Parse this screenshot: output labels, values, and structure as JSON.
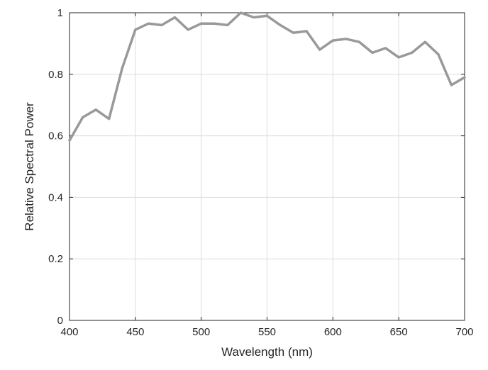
{
  "chart_data": {
    "type": "line",
    "title": "",
    "xlabel": "Wavelength (nm)",
    "ylabel": "Relative Spectral Power",
    "xlim": [
      400,
      700
    ],
    "ylim": [
      0,
      1
    ],
    "x_ticks": [
      "400",
      "450",
      "500",
      "550",
      "600",
      "650",
      "700"
    ],
    "y_ticks": [
      "0",
      "0.2",
      "0.4",
      "0.6",
      "0.8",
      "1"
    ],
    "grid": true,
    "legend": "none",
    "series": [
      {
        "color": "#999999",
        "x": [
          400,
          410,
          420,
          430,
          440,
          450,
          460,
          470,
          480,
          490,
          500,
          510,
          520,
          530,
          540,
          550,
          560,
          570,
          580,
          590,
          600,
          610,
          620,
          630,
          640,
          650,
          660,
          670,
          680,
          690,
          700
        ],
        "y": [
          0.585,
          0.66,
          0.685,
          0.655,
          0.82,
          0.945,
          0.965,
          0.96,
          0.985,
          0.945,
          0.965,
          0.965,
          0.96,
          1.0,
          0.985,
          0.99,
          0.96,
          0.935,
          0.94,
          0.88,
          0.91,
          0.915,
          0.905,
          0.87,
          0.885,
          0.855,
          0.87,
          0.905,
          0.865,
          0.765,
          0.79
        ]
      }
    ]
  }
}
